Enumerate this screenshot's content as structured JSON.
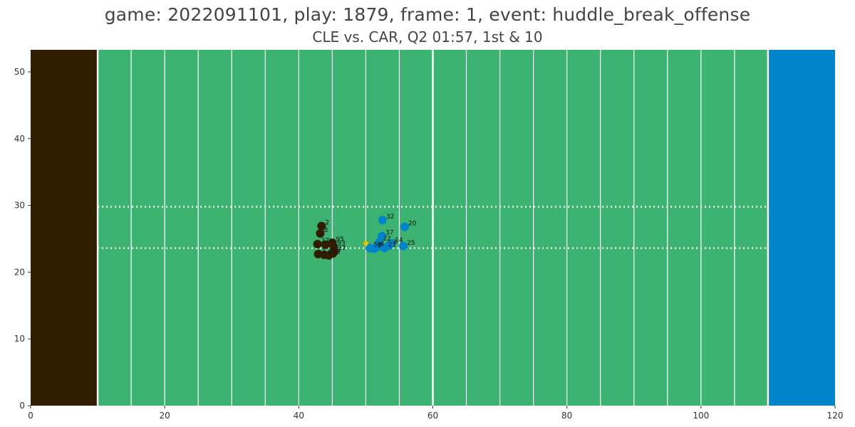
{
  "title": "game: 2022091101, play: 1879, frame: 1, event: huddle_break_offense",
  "subtitle": "CLE vs. CAR, Q2 01:57, 1st & 10",
  "colors": {
    "field": "#3cb371",
    "home_endzone": "#311d00",
    "away_endzone": "#0085ca",
    "home_team": "#311d00",
    "away_team": "#0085ca",
    "football": "#e0c000",
    "lines": "#ffffff"
  },
  "chart_data": {
    "type": "scatter",
    "title": "game: 2022091101, play: 1879, frame: 1, event: huddle_break_offense",
    "subtitle": "CLE vs. CAR, Q2 01:57, 1st & 10",
    "xlim": [
      0,
      120
    ],
    "ylim": [
      0,
      53.3
    ],
    "xticks": [
      0,
      20,
      40,
      60,
      80,
      100,
      120
    ],
    "yticks": [
      0,
      10,
      20,
      30,
      40,
      50
    ],
    "grid": false,
    "endzones": [
      {
        "team": "CLE",
        "x_range": [
          0,
          10
        ]
      },
      {
        "team": "CAR",
        "x_range": [
          110,
          120
        ]
      }
    ],
    "line_of_scrimmage": 60,
    "yard_lines": [
      15,
      20,
      25,
      30,
      35,
      40,
      45,
      50,
      55,
      65,
      70,
      75,
      80,
      85,
      90,
      95,
      100,
      105
    ],
    "hash_lines_y": [
      23.6,
      29.8
    ],
    "series": [
      {
        "team": "CLE",
        "points": [
          {
            "label": "2",
            "x": 43.4,
            "y": 26.9
          },
          {
            "label": "8",
            "x": 43.2,
            "y": 25.8
          },
          {
            "label": "27",
            "x": 42.8,
            "y": 24.2
          },
          {
            "label": "7",
            "x": 44.0,
            "y": 24.1
          },
          {
            "label": "95",
            "x": 45.0,
            "y": 24.4
          },
          {
            "label": "93",
            "x": 45.2,
            "y": 23.8
          },
          {
            "label": "37",
            "x": 45.3,
            "y": 23.1
          },
          {
            "label": "1",
            "x": 42.9,
            "y": 22.7
          },
          {
            "label": "8",
            "x": 43.8,
            "y": 22.6
          },
          {
            "label": "55",
            "x": 44.5,
            "y": 22.5
          },
          {
            "label": "5",
            "x": 45.1,
            "y": 22.8
          }
        ]
      },
      {
        "team": "CAR",
        "points": [
          {
            "label": "32",
            "x": 52.5,
            "y": 27.8
          },
          {
            "label": "20",
            "x": 55.8,
            "y": 26.8
          },
          {
            "label": "37",
            "x": 52.4,
            "y": 25.4
          },
          {
            "label": "22",
            "x": 52.0,
            "y": 24.5
          },
          {
            "label": "14",
            "x": 53.8,
            "y": 24.3
          },
          {
            "label": "25",
            "x": 55.6,
            "y": 23.9
          },
          {
            "label": "58",
            "x": 50.6,
            "y": 23.6
          },
          {
            "label": "4",
            "x": 51.6,
            "y": 23.7
          },
          {
            "label": "21",
            "x": 52.8,
            "y": 23.6
          },
          {
            "label": "3",
            "x": 53.5,
            "y": 24.0
          },
          {
            "label": "9",
            "x": 51.2,
            "y": 23.5
          }
        ]
      }
    ],
    "football": {
      "x": 50.0,
      "y": 24.3
    }
  }
}
